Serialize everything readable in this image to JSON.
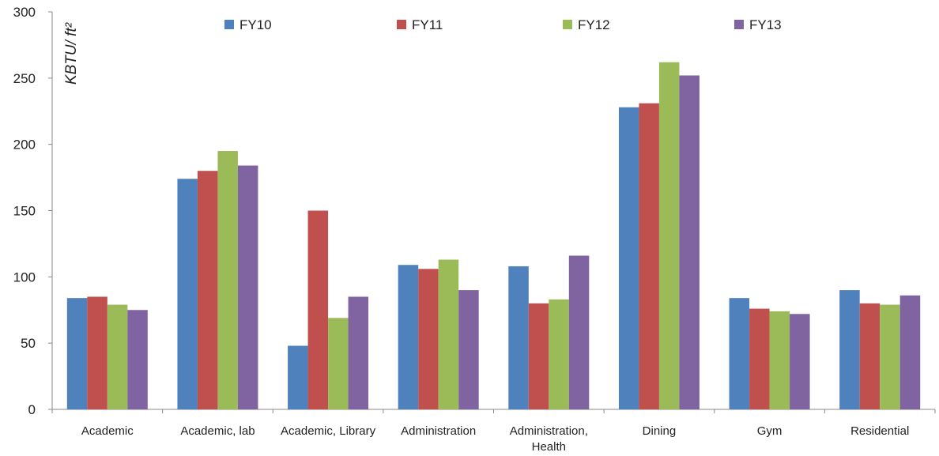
{
  "chart_data": {
    "type": "bar",
    "title": "",
    "xlabel": "",
    "ylabel": "KBTU/ ft²",
    "ylim": [
      0,
      300
    ],
    "yticks": [
      0,
      50,
      100,
      150,
      200,
      250,
      300
    ],
    "grid": false,
    "legend_position": "top",
    "categories": [
      "Academic",
      "Academic, lab",
      "Academic, Library",
      "Administration",
      "Administration, Health",
      "Dining",
      "Gym",
      "Residential"
    ],
    "category_lines": [
      [
        "Academic"
      ],
      [
        "Academic, lab"
      ],
      [
        "Academic, Library"
      ],
      [
        "Administration"
      ],
      [
        "Administration,",
        "Health"
      ],
      [
        "Dining"
      ],
      [
        "Gym"
      ],
      [
        "Residential"
      ]
    ],
    "series": [
      {
        "name": "FY10",
        "color": "#4F81BD",
        "values": [
          84,
          174,
          48,
          109,
          108,
          228,
          84,
          90
        ]
      },
      {
        "name": "FY11",
        "color": "#C0504D",
        "values": [
          85,
          180,
          150,
          106,
          80,
          231,
          76,
          80
        ]
      },
      {
        "name": "FY12",
        "color": "#9BBB59",
        "values": [
          79,
          195,
          69,
          113,
          83,
          262,
          74,
          79
        ]
      },
      {
        "name": "FY13",
        "color": "#8064A2",
        "values": [
          75,
          184,
          85,
          90,
          116,
          252,
          72,
          86
        ]
      }
    ]
  }
}
